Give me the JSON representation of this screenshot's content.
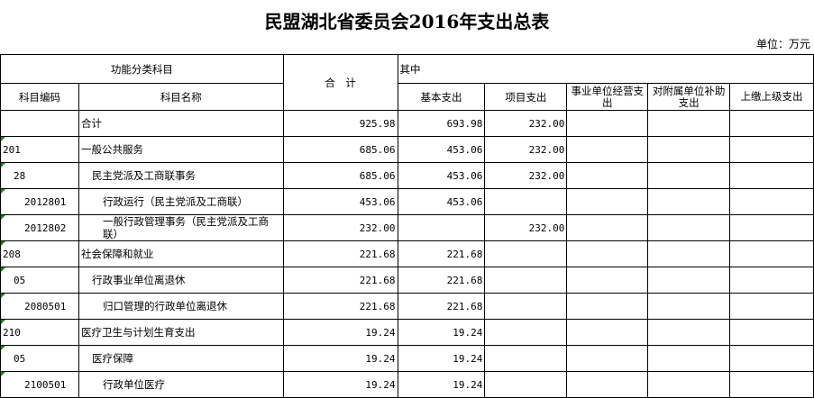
{
  "title": "民盟湖北省委员会2016年支出总表",
  "unit": "单位：万元",
  "header": {
    "func": "功能分类科目",
    "total": "合　计",
    "of_which": "其中",
    "code": "科目编码",
    "name": "科目名称",
    "basic": "基本支出",
    "project": "项目支出",
    "biz": "事业单位经营支出",
    "sub": "对附属单位补助支出",
    "upper": "上缴上级支出"
  },
  "rows": [
    {
      "code": "",
      "name": "合计",
      "level": 0,
      "total": "925.98",
      "basic": "693.98",
      "project": "232.00"
    },
    {
      "code": "201",
      "name": "一般公共服务",
      "level": 0,
      "total": "685.06",
      "basic": "453.06",
      "project": "232.00"
    },
    {
      "code": "28",
      "name": "民主党派及工商联事务",
      "level": 1,
      "total": "685.06",
      "basic": "453.06",
      "project": "232.00"
    },
    {
      "code": "2012801",
      "name": "行政运行（民主党派及工商联）",
      "level": 2,
      "total": "453.06",
      "basic": "453.06",
      "project": ""
    },
    {
      "code": "2012802",
      "name": "一般行政管理事务（民主党派及工商联）",
      "level": 2,
      "total": "232.00",
      "basic": "",
      "project": "232.00"
    },
    {
      "code": "208",
      "name": "社会保障和就业",
      "level": 0,
      "total": "221.68",
      "basic": "221.68",
      "project": ""
    },
    {
      "code": "05",
      "name": "行政事业单位离退休",
      "level": 1,
      "total": "221.68",
      "basic": "221.68",
      "project": ""
    },
    {
      "code": "2080501",
      "name": "归口管理的行政单位离退休",
      "level": 2,
      "total": "221.68",
      "basic": "221.68",
      "project": ""
    },
    {
      "code": "210",
      "name": "医疗卫生与计划生育支出",
      "level": 0,
      "total": "19.24",
      "basic": "19.24",
      "project": ""
    },
    {
      "code": "05",
      "name": "医疗保障",
      "level": 1,
      "total": "19.24",
      "basic": "19.24",
      "project": ""
    },
    {
      "code": "2100501",
      "name": "行政单位医疗",
      "level": 2,
      "total": "19.24",
      "basic": "19.24",
      "project": ""
    }
  ]
}
